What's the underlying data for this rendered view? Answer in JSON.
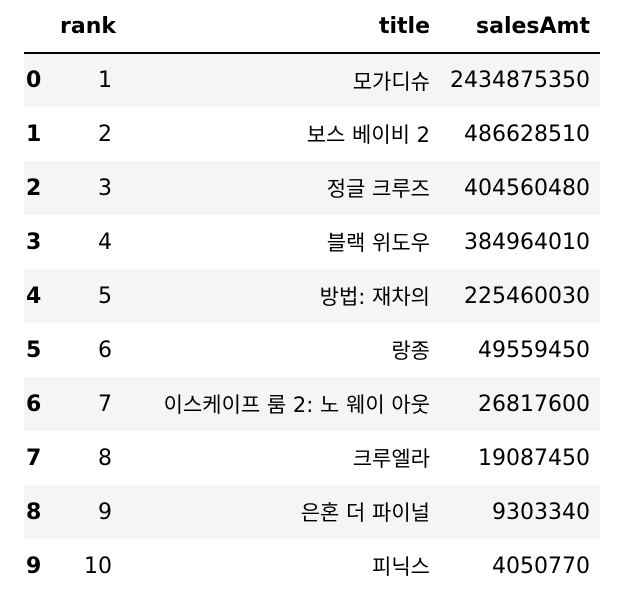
{
  "columns": [
    "",
    "rank",
    "title",
    "salesAmt"
  ],
  "rows": [
    {
      "index": "0",
      "rank": "1",
      "title": "모가디슈",
      "salesAmt": "2434875350"
    },
    {
      "index": "1",
      "rank": "2",
      "title": "보스 베이비 2",
      "salesAmt": "486628510"
    },
    {
      "index": "2",
      "rank": "3",
      "title": "정글 크루즈",
      "salesAmt": "404560480"
    },
    {
      "index": "3",
      "rank": "4",
      "title": "블랙 위도우",
      "salesAmt": "384964010"
    },
    {
      "index": "4",
      "rank": "5",
      "title": "방법: 재차의",
      "salesAmt": "225460030"
    },
    {
      "index": "5",
      "rank": "6",
      "title": "랑종",
      "salesAmt": "49559450"
    },
    {
      "index": "6",
      "rank": "7",
      "title": "이스케이프 룸 2: 노 웨이 아웃",
      "salesAmt": "26817600"
    },
    {
      "index": "7",
      "rank": "8",
      "title": "크루엘라",
      "salesAmt": "19087450"
    },
    {
      "index": "8",
      "rank": "9",
      "title": "은혼 더 파이널",
      "salesAmt": "9303340"
    },
    {
      "index": "9",
      "rank": "10",
      "title": "피닉스",
      "salesAmt": "4050770"
    }
  ]
}
